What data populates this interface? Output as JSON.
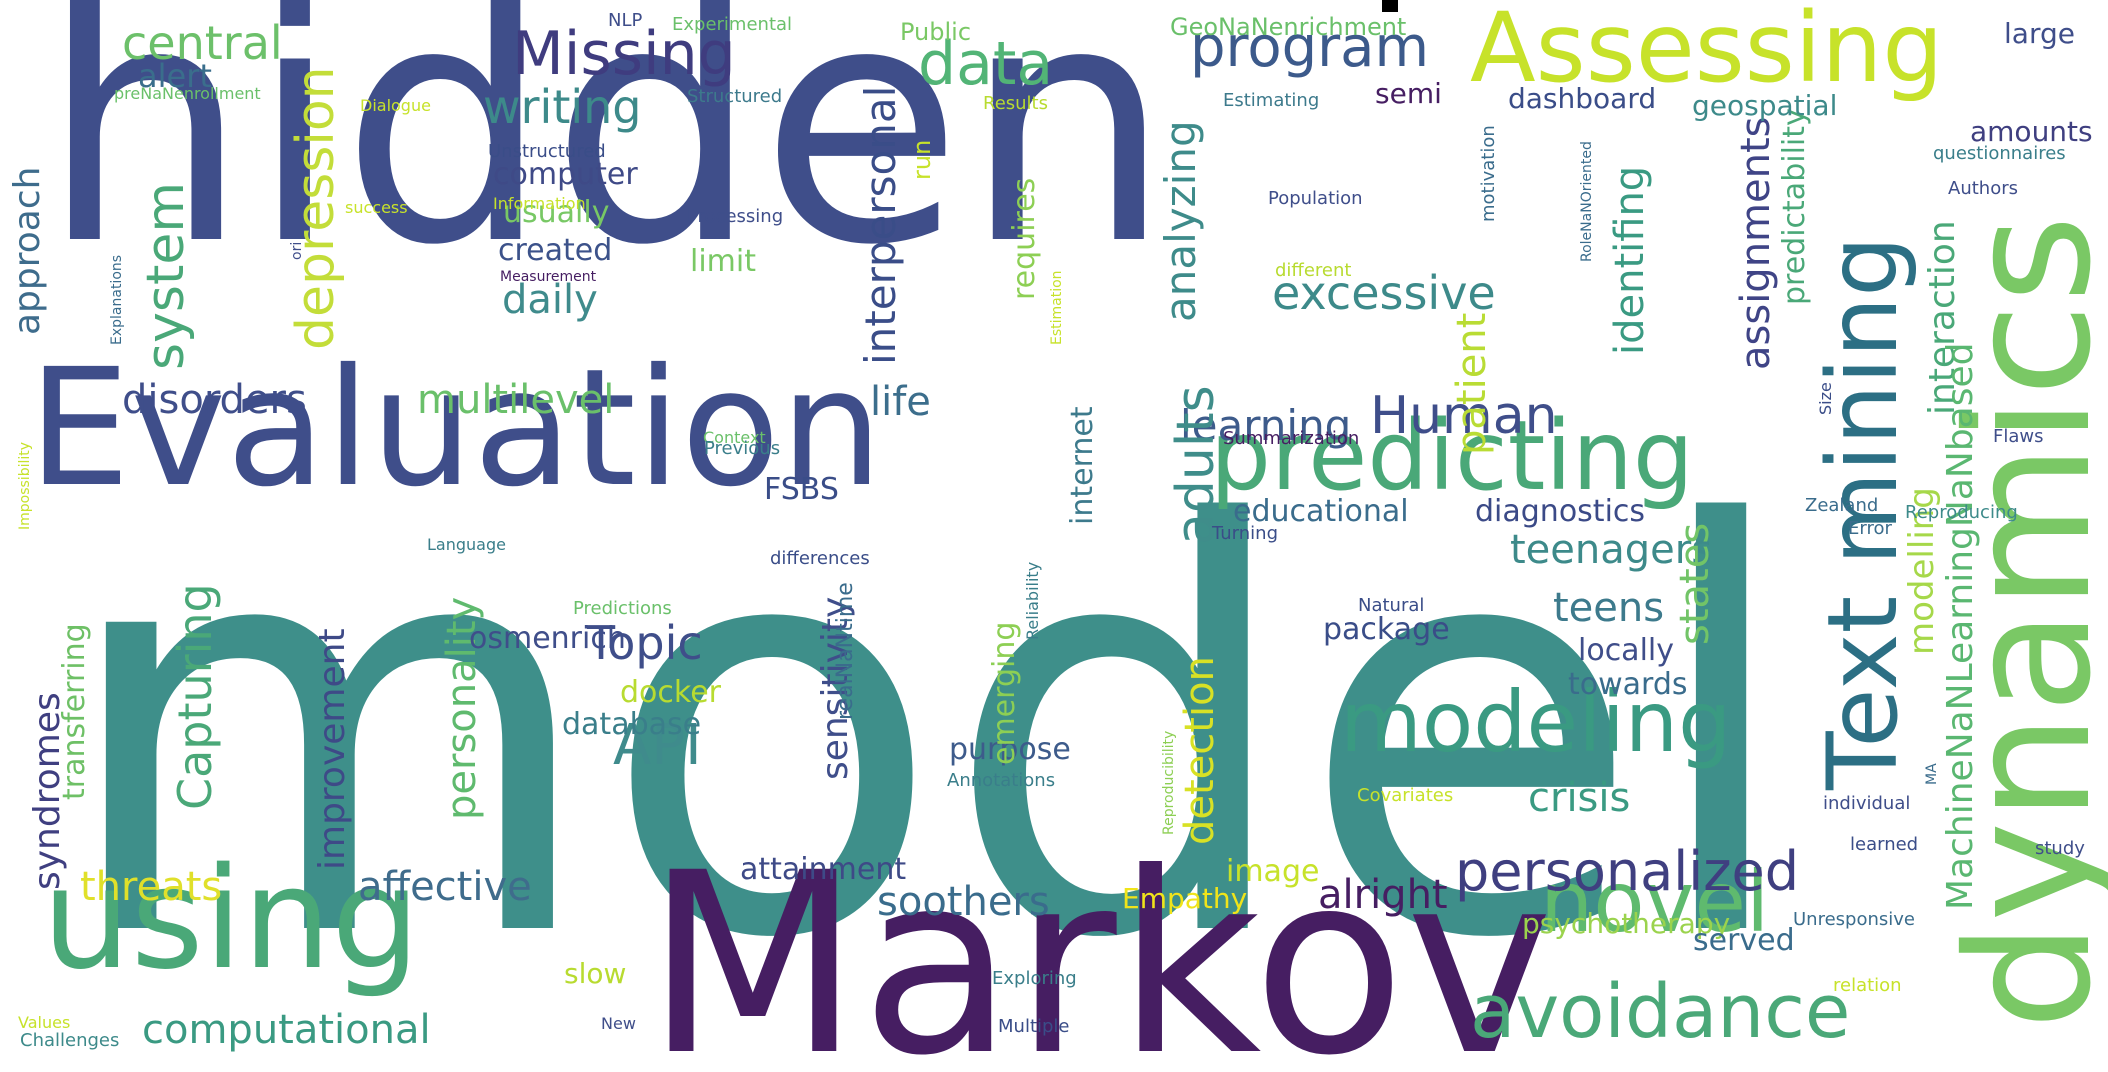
{
  "cloud": {
    "palette_note": "viridis",
    "words": [
      {
        "text": "hidden",
        "color": "#3f4e8a"
      },
      {
        "text": "model",
        "color": "#3e8f8a"
      },
      {
        "text": "Markov",
        "color": "#461e62"
      },
      {
        "text": "Evaluation",
        "color": "#3f4e8a"
      },
      {
        "text": "dynamics",
        "color": "#7ac865"
      },
      {
        "text": "using",
        "color": "#4aa878"
      },
      {
        "text": "Assessing",
        "color": "#c7e22a"
      },
      {
        "text": "predicting",
        "color": "#4aa878"
      },
      {
        "text": "Text mining",
        "color": "#2c6f84"
      },
      {
        "text": "modeling",
        "color": "#3a9a82"
      },
      {
        "text": "novel",
        "color": "#5fba6e"
      },
      {
        "text": "avoidance",
        "color": "#4aa878"
      },
      {
        "text": "personalized",
        "color": "#3f3f80"
      },
      {
        "text": "Missing",
        "color": "#3f3c7f"
      },
      {
        "text": "program",
        "color": "#3c5a8b"
      },
      {
        "text": "data",
        "color": "#52b476"
      },
      {
        "text": "central",
        "color": "#6cc06a"
      },
      {
        "text": "alert",
        "color": "#3a6e8c"
      },
      {
        "text": "system",
        "color": "#4aa878"
      },
      {
        "text": "depression",
        "color": "#c3dd39"
      },
      {
        "text": "writing",
        "color": "#3d8a8a"
      },
      {
        "text": "computer",
        "color": "#3f4a87"
      },
      {
        "text": "usually",
        "color": "#78c865"
      },
      {
        "text": "created",
        "color": "#3c528a"
      },
      {
        "text": "daily",
        "color": "#3f8b8c"
      },
      {
        "text": "approach",
        "color": "#3e6c8c"
      },
      {
        "text": "excessive",
        "color": "#3d8a8a"
      },
      {
        "text": "Human",
        "color": "#3f4e8a"
      },
      {
        "text": "analyzing",
        "color": "#3e8b8a"
      },
      {
        "text": "interpersonal",
        "color": "#3a4d88"
      },
      {
        "text": "patient",
        "color": "#b9dc34"
      },
      {
        "text": "assignments",
        "color": "#3f4486"
      },
      {
        "text": "identifing",
        "color": "#3a9a82"
      },
      {
        "text": "interaction",
        "color": "#4aa878"
      },
      {
        "text": "MachineNaNLearningNaNbased",
        "color": "#5ab771"
      },
      {
        "text": "modelling",
        "color": "#a6d84a"
      },
      {
        "text": "predictability",
        "color": "#4aa878"
      },
      {
        "text": "disorders",
        "color": "#3f4e8a"
      },
      {
        "text": "multilevel",
        "color": "#6ac06a"
      },
      {
        "text": "life",
        "color": "#3c6e8c"
      },
      {
        "text": "learning",
        "color": "#3d5b8b"
      },
      {
        "text": "adults",
        "color": "#3f8d8a"
      },
      {
        "text": "educational",
        "color": "#3a6c8c"
      },
      {
        "text": "diagnostics",
        "color": "#3b4a87"
      },
      {
        "text": "teenagers",
        "color": "#3d8a8a"
      },
      {
        "text": "teens",
        "color": "#3d7a8c"
      },
      {
        "text": "states",
        "color": "#72c467"
      },
      {
        "text": "locally",
        "color": "#3f4e8a"
      },
      {
        "text": "towards",
        "color": "#3a6c8c"
      },
      {
        "text": "crisis",
        "color": "#3a9a82"
      },
      {
        "text": "Topic",
        "color": "#3f4e8a"
      },
      {
        "text": "API",
        "color": "#3f8b8c"
      },
      {
        "text": "docker",
        "color": "#b8db30"
      },
      {
        "text": "database",
        "color": "#3a7e8a"
      },
      {
        "text": "sensitivity",
        "color": "#3f4e8a"
      },
      {
        "text": "personality",
        "color": "#5fba6e"
      },
      {
        "text": "improvement",
        "color": "#3e4a87"
      },
      {
        "text": "Capturing",
        "color": "#4aa878"
      },
      {
        "text": "syndromes",
        "color": "#3f3f80"
      },
      {
        "text": "transferring",
        "color": "#6ec066"
      },
      {
        "text": "threats",
        "color": "#e0e02a"
      },
      {
        "text": "affective",
        "color": "#3f6c8c"
      },
      {
        "text": "soothers",
        "color": "#3a6c8c"
      },
      {
        "text": "attainment",
        "color": "#3e4a87"
      },
      {
        "text": "computational",
        "color": "#3a9a82"
      },
      {
        "text": "alright",
        "color": "#461e62"
      },
      {
        "text": "psychotherapy",
        "color": "#9bd34d"
      },
      {
        "text": "served",
        "color": "#3a6c8c"
      },
      {
        "text": "slow",
        "color": "#b8db30"
      },
      {
        "text": "purpose",
        "color": "#3d5b8b"
      },
      {
        "text": "package",
        "color": "#3a4d88"
      },
      {
        "text": "detection",
        "color": "#d8e125"
      },
      {
        "text": "emerging",
        "color": "#8dcf54"
      },
      {
        "text": "image",
        "color": "#c7e22a"
      },
      {
        "text": "Empathy",
        "color": "#f0e41a"
      },
      {
        "text": "requires",
        "color": "#8dcf54"
      },
      {
        "text": "limit",
        "color": "#7ac865"
      },
      {
        "text": "internet",
        "color": "#3d7a8c"
      },
      {
        "text": "FSBS",
        "color": "#3a4d88"
      },
      {
        "text": "osmenrich",
        "color": "#3f4e8a"
      },
      {
        "text": "semi",
        "color": "#461e62"
      },
      {
        "text": "dashboard",
        "color": "#3a4d88"
      },
      {
        "text": "geospatial",
        "color": "#3d8a8a"
      },
      {
        "text": "amounts",
        "color": "#3f3f80"
      },
      {
        "text": "large",
        "color": "#3f4e8a"
      },
      {
        "text": "run",
        "color": "#c7e22a"
      },
      {
        "text": "GeoNaNenrichment",
        "color": "#6ac06a"
      },
      {
        "text": "Public",
        "color": "#7ac865"
      },
      {
        "text": "Experimental",
        "color": "#6ac06a"
      },
      {
        "text": "NLP",
        "color": "#3f4e8a"
      },
      {
        "text": "Structured",
        "color": "#3d7a8c"
      },
      {
        "text": "Results",
        "color": "#b8db30"
      },
      {
        "text": "Estimating",
        "color": "#3d7a8c"
      },
      {
        "text": "motivation",
        "color": "#3a6c8c"
      },
      {
        "text": "questionnaires",
        "color": "#3a7e8a"
      },
      {
        "text": "Authors",
        "color": "#3f4e8a"
      },
      {
        "text": "Population",
        "color": "#3f4e8a"
      },
      {
        "text": "different",
        "color": "#b8db30"
      },
      {
        "text": "RoleNaNOriented",
        "color": "#3a6c8c"
      },
      {
        "text": "Summarization",
        "color": "#461e62"
      },
      {
        "text": "Flaws",
        "color": "#3f4e8a"
      },
      {
        "text": "Size",
        "color": "#3a4d88"
      },
      {
        "text": "Zealand",
        "color": "#3a6c8c"
      },
      {
        "text": "Error",
        "color": "#3a6c8c"
      },
      {
        "text": "Reproducing",
        "color": "#3d8a8a"
      },
      {
        "text": "Turning",
        "color": "#3a4d88"
      },
      {
        "text": "Natural",
        "color": "#3a4d88"
      },
      {
        "text": "Reliability",
        "color": "#3a7e8a"
      },
      {
        "text": "Reproducibility",
        "color": "#8dcf54"
      },
      {
        "text": "Covariates",
        "color": "#c7e22a"
      },
      {
        "text": "Annotations",
        "color": "#3a7e8a"
      },
      {
        "text": "individual",
        "color": "#3f4e8a"
      },
      {
        "text": "learned",
        "color": "#3a4d88"
      },
      {
        "text": "study",
        "color": "#3f4e8a"
      },
      {
        "text": "MA",
        "color": "#3a6c8c"
      },
      {
        "text": "Unresponsive",
        "color": "#3a6c8c"
      },
      {
        "text": "relation",
        "color": "#c7e22a"
      },
      {
        "text": "Exploring",
        "color": "#3a7e8a"
      },
      {
        "text": "Multiple",
        "color": "#3a4d88"
      },
      {
        "text": "New",
        "color": "#3f4e8a"
      },
      {
        "text": "Values",
        "color": "#c7e22a"
      },
      {
        "text": "Challenges",
        "color": "#3d8a8a"
      },
      {
        "text": "Impossibility",
        "color": "#c7e22a"
      },
      {
        "text": "Explanations",
        "color": "#3a6c8c"
      },
      {
        "text": "ori",
        "color": "#3f4e8a"
      },
      {
        "text": "Measurement",
        "color": "#461e62"
      },
      {
        "text": "success",
        "color": "#c7e22a"
      },
      {
        "text": "Information",
        "color": "#c7e22a"
      },
      {
        "text": "Unstructured",
        "color": "#3a4d88"
      },
      {
        "text": "Dialogue",
        "color": "#c7e22a"
      },
      {
        "text": "preNaNenrollment",
        "color": "#6ac06a"
      },
      {
        "text": "Processing",
        "color": "#3f4e8a"
      },
      {
        "text": "Context",
        "color": "#6ac06a"
      },
      {
        "text": "Previous",
        "color": "#3a7e8a"
      },
      {
        "text": "Language",
        "color": "#3a7e8a"
      },
      {
        "text": "differences",
        "color": "#3a4d88"
      },
      {
        "text": "Predictions",
        "color": "#6ac06a"
      },
      {
        "text": "realNaNtime",
        "color": "#3a6c8c"
      },
      {
        "text": "Estimation",
        "color": "#c7e22a"
      }
    ]
  }
}
